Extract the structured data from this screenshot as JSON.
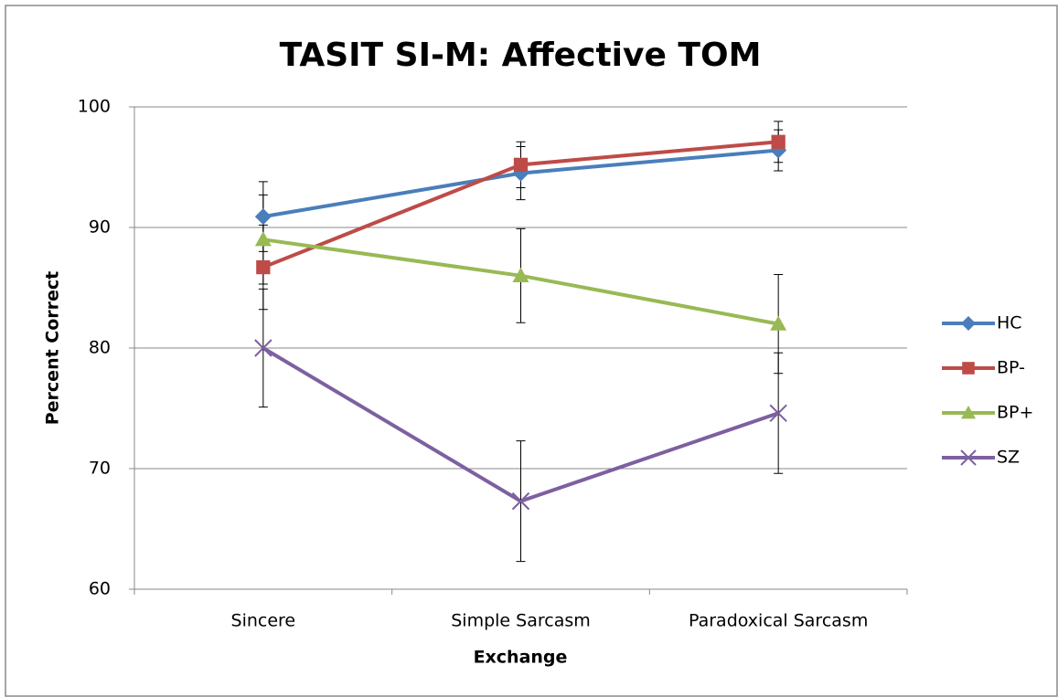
{
  "chart_data": {
    "type": "line",
    "title": "TASIT SI-M: Affective TOM",
    "xlabel": "Exchange",
    "ylabel": "Percent Correct",
    "categories": [
      "Sincere",
      "Simple Sarcasm",
      "Paradoxical Sarcasm"
    ],
    "ylim": [
      60,
      100
    ],
    "yticks": [
      60,
      70,
      80,
      90,
      100
    ],
    "grid": true,
    "legend": "right",
    "series": [
      {
        "name": "HC",
        "color": "#4a7ebb",
        "marker": "diamond",
        "values": [
          90.9,
          94.5,
          96.4
        ],
        "errors": [
          2.9,
          2.2,
          1.7
        ]
      },
      {
        "name": "BP-",
        "color": "#be4b48",
        "marker": "square",
        "values": [
          86.7,
          95.2,
          97.1
        ],
        "errors": [
          3.5,
          1.9,
          1.7
        ]
      },
      {
        "name": "BP+",
        "color": "#98b954",
        "marker": "triangle",
        "values": [
          89.0,
          86.0,
          82.0
        ],
        "errors": [
          3.7,
          3.9,
          4.1
        ]
      },
      {
        "name": "SZ",
        "color": "#7d60a0",
        "marker": "x",
        "values": [
          80.0,
          67.3,
          74.6
        ],
        "errors": [
          4.9,
          5.0,
          5.0
        ]
      }
    ]
  }
}
